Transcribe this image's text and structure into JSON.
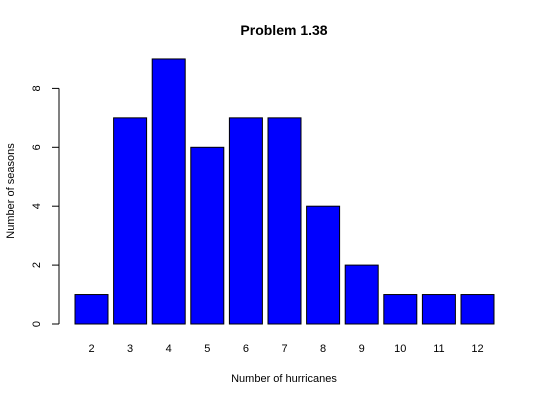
{
  "chart_data": {
    "type": "bar",
    "title": "Problem 1.38",
    "xlabel": "Number of hurricanes",
    "ylabel": "Number of seasons",
    "categories": [
      "2",
      "3",
      "4",
      "5",
      "6",
      "7",
      "8",
      "9",
      "10",
      "11",
      "12"
    ],
    "values": [
      1,
      7,
      9,
      6,
      7,
      7,
      4,
      2,
      1,
      1,
      1
    ],
    "ylim": [
      0,
      9
    ],
    "yticks": [
      0,
      2,
      4,
      6,
      8
    ],
    "bar_color": "#0000ff",
    "bar_edge_color": "#000000",
    "grid": false,
    "legend": "none"
  }
}
